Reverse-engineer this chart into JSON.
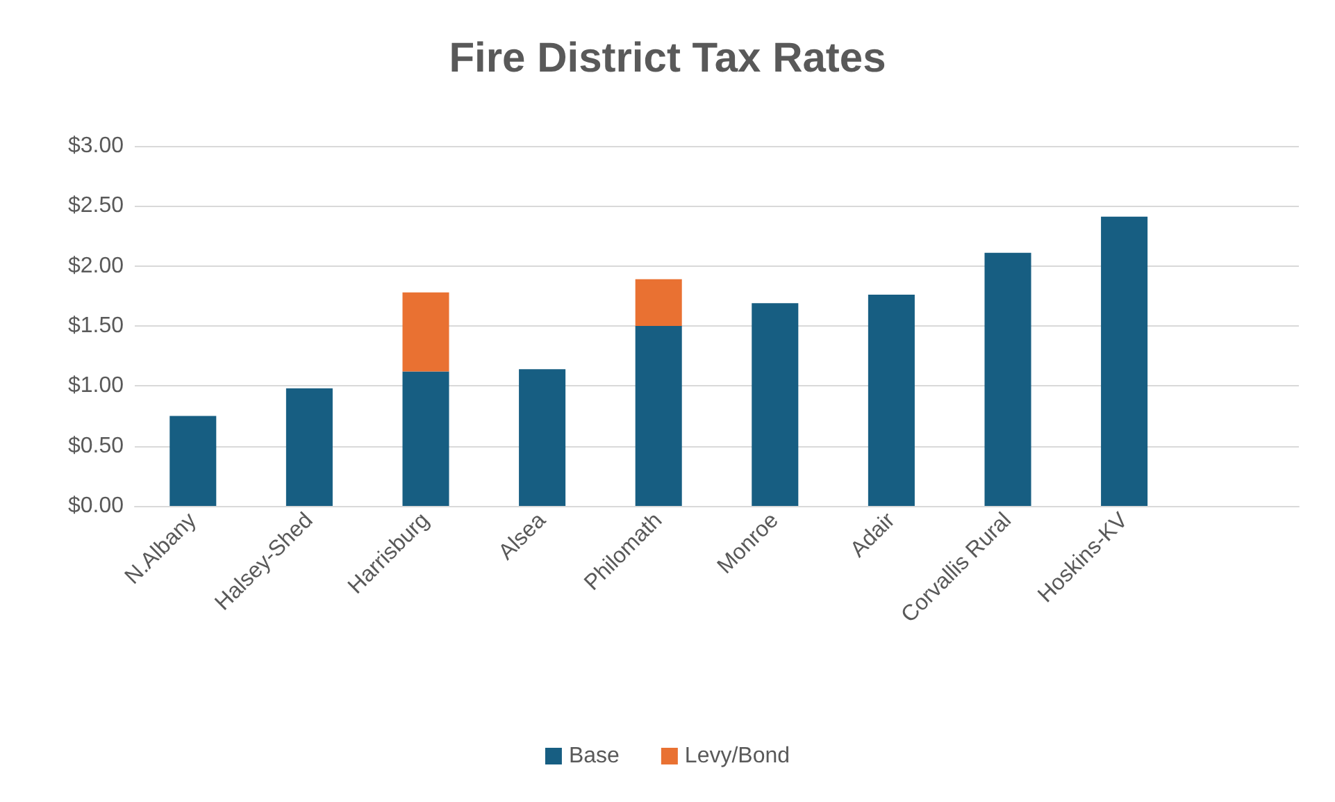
{
  "chart_data": {
    "type": "bar",
    "title": "Fire District Tax Rates",
    "categories": [
      "N.Albany",
      "Halsey-Shed",
      "Harrisburg",
      "Alsea",
      "Philomath",
      "Monroe",
      "Adair",
      "Corvallis Rural",
      "Hoskins-KV",
      null
    ],
    "series": [
      {
        "name": "Base",
        "color": "#175e82",
        "values": [
          0.75,
          0.98,
          1.12,
          1.14,
          1.5,
          1.69,
          1.76,
          2.11,
          2.41,
          null
        ]
      },
      {
        "name": "Levy/Bond",
        "color": "#e97132",
        "values": [
          null,
          null,
          0.66,
          null,
          0.39,
          null,
          null,
          null,
          null,
          null
        ]
      }
    ],
    "stacked": true,
    "ylim": [
      0,
      3
    ],
    "yticks": [
      {
        "value": 0,
        "label": "$0.00"
      },
      {
        "value": 0.5,
        "label": "$0.50"
      },
      {
        "value": 1,
        "label": "$1.00"
      },
      {
        "value": 1.5,
        "label": "$1.50"
      },
      {
        "value": 2,
        "label": "$2.00"
      },
      {
        "value": 2.5,
        "label": "$2.50"
      },
      {
        "value": 3,
        "label": "$3.00"
      }
    ],
    "grid": "y",
    "legend": "bottom"
  }
}
